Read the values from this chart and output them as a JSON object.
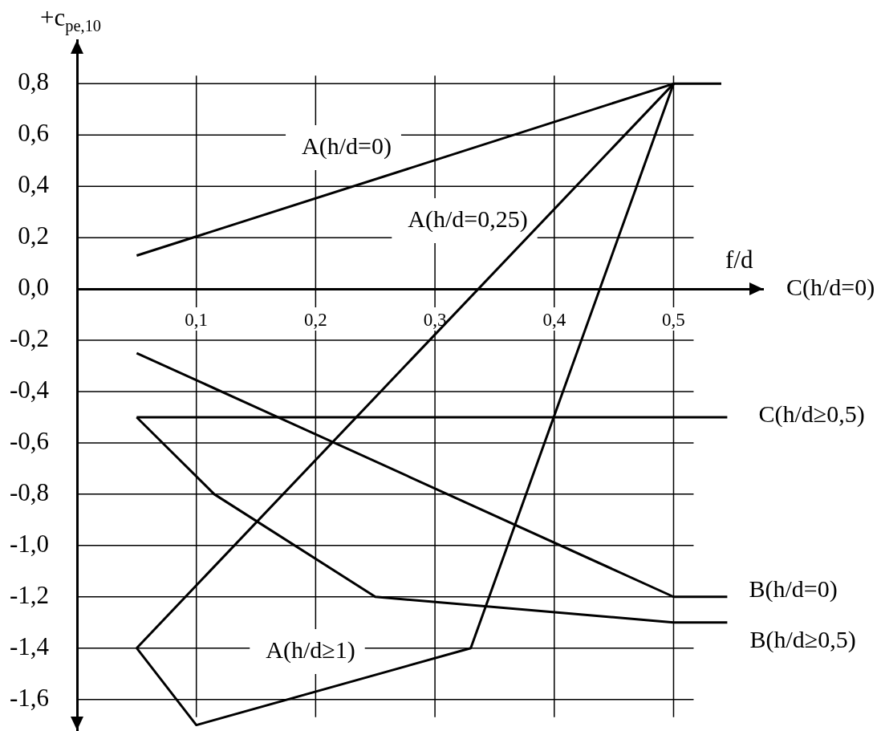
{
  "chart_data": {
    "type": "line",
    "xlabel": "f/d",
    "ylabel": "+c$_{pe,10}$",
    "xlim": [
      0,
      0.575
    ],
    "ylim": [
      -1.72,
      0.97
    ],
    "xticks": [
      {
        "value": 0.1,
        "label": "0,1"
      },
      {
        "value": 0.2,
        "label": "0,2"
      },
      {
        "value": 0.3,
        "label": "0,3"
      },
      {
        "value": 0.4,
        "label": "0,4"
      },
      {
        "value": 0.5,
        "label": "0,5"
      }
    ],
    "yticks": [
      {
        "value": 0.8,
        "label": "0,8"
      },
      {
        "value": 0.6,
        "label": "0,6"
      },
      {
        "value": 0.4,
        "label": "0,4"
      },
      {
        "value": 0.2,
        "label": "0,2"
      },
      {
        "value": 0,
        "label": "0,0"
      },
      {
        "value": -0.2,
        "label": "-0,2"
      },
      {
        "value": -0.4,
        "label": "-0,4"
      },
      {
        "value": -0.6,
        "label": "-0,6"
      },
      {
        "value": -0.8,
        "label": "-0,8"
      },
      {
        "value": -1,
        "label": "-1,0"
      },
      {
        "value": -1.2,
        "label": "-1,2"
      },
      {
        "value": -1.4,
        "label": "-1,4"
      },
      {
        "value": -1.6,
        "label": "-1,6"
      }
    ],
    "grid": true,
    "annotations": [
      "C(h/d=0)"
    ],
    "series": [
      {
        "name": "A(h/d=0)",
        "color": "#000000",
        "x": [
          0.05,
          0.5,
          0.54
        ],
        "values": [
          0.13,
          0.8,
          0.8
        ]
      },
      {
        "name": "A(h/d=0,25)",
        "color": "#000000",
        "x": [
          0.05,
          0.5
        ],
        "values": [
          -1.4,
          0.8
        ]
      },
      {
        "name": "A(h/d≥1)",
        "color": "#000000",
        "x": [
          0.05,
          0.1,
          0.33,
          0.5
        ],
        "values": [
          -1.4,
          -1.7,
          -1.4,
          0.8
        ]
      },
      {
        "name": "B(h/d=0)",
        "color": "#000000",
        "x": [
          0.05,
          0.5,
          0.545
        ],
        "values": [
          -0.25,
          -1.2,
          -1.2
        ]
      },
      {
        "name": "B(h/d≥0,5)",
        "color": "#000000",
        "x": [
          0.05,
          0.115,
          0.25,
          0.5,
          0.545
        ],
        "values": [
          -0.5,
          -0.8,
          -1.2,
          -1.3,
          -1.3
        ]
      },
      {
        "name": "C(h/d≥0,5)",
        "color": "#000000",
        "x": [
          0.05,
          0.545
        ],
        "values": [
          -0.5,
          -0.5
        ]
      }
    ]
  }
}
